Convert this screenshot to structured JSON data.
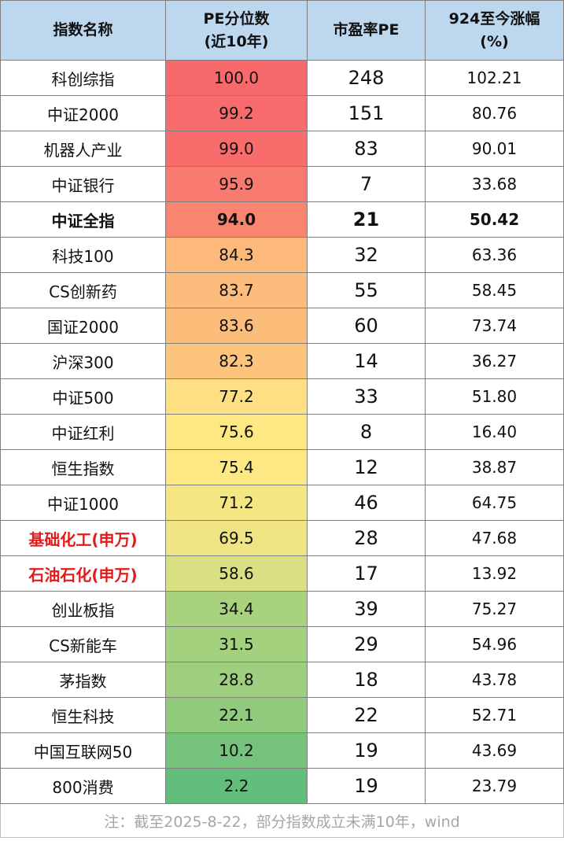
{
  "header": {
    "col1": "指数名称",
    "col2_line1": "PE分位数",
    "col2_line2": "(近10年)",
    "col3": "市盈率PE",
    "col4_line1": "924至今涨幅",
    "col4_line2": "(%)"
  },
  "rows": [
    {
      "name": "科创综指",
      "pct": "100.0",
      "pe": "248",
      "gain": "102.21",
      "color": "#f8696b",
      "style": "normal"
    },
    {
      "name": "中证2000",
      "pct": "99.2",
      "pe": "151",
      "gain": "80.76",
      "color": "#f86b6c",
      "style": "normal"
    },
    {
      "name": "机器人产业",
      "pct": "99.0",
      "pe": "83",
      "gain": "90.01",
      "color": "#f86c6c",
      "style": "normal"
    },
    {
      "name": "中证银行",
      "pct": "95.9",
      "pe": "7",
      "gain": "33.68",
      "color": "#f97b70",
      "style": "normal"
    },
    {
      "name": "中证全指",
      "pct": "94.0",
      "pe": "21",
      "gain": "50.42",
      "color": "#f98571",
      "style": "bold"
    },
    {
      "name": "科技100",
      "pct": "84.3",
      "pe": "32",
      "gain": "63.36",
      "color": "#fcb97a",
      "style": "normal"
    },
    {
      "name": "CS创新药",
      "pct": "83.7",
      "pe": "55",
      "gain": "58.45",
      "color": "#fcbc7b",
      "style": "normal"
    },
    {
      "name": "国证2000",
      "pct": "83.6",
      "pe": "60",
      "gain": "73.74",
      "color": "#fcbd7b",
      "style": "normal"
    },
    {
      "name": "沪深300",
      "pct": "82.3",
      "pe": "14",
      "gain": "36.27",
      "color": "#fcc47c",
      "style": "normal"
    },
    {
      "name": "中证500",
      "pct": "77.2",
      "pe": "33",
      "gain": "51.80",
      "color": "#fee082",
      "style": "normal"
    },
    {
      "name": "中证红利",
      "pct": "75.6",
      "pe": "8",
      "gain": "16.40",
      "color": "#fee883",
      "style": "normal"
    },
    {
      "name": "恒生指数",
      "pct": "75.4",
      "pe": "12",
      "gain": "38.87",
      "color": "#fee883",
      "style": "normal"
    },
    {
      "name": "中证1000",
      "pct": "71.2",
      "pe": "46",
      "gain": "64.75",
      "color": "#f5e684",
      "style": "normal"
    },
    {
      "name": "基础化工(申万)",
      "pct": "69.5",
      "pe": "28",
      "gain": "47.68",
      "color": "#efe483",
      "style": "red"
    },
    {
      "name": "石油石化(申万)",
      "pct": "58.6",
      "pe": "17",
      "gain": "13.92",
      "color": "#d9e082",
      "style": "red"
    },
    {
      "name": "创业板指",
      "pct": "34.4",
      "pe": "39",
      "gain": "75.27",
      "color": "#a9d27f",
      "style": "normal"
    },
    {
      "name": "CS新能车",
      "pct": "31.5",
      "pe": "29",
      "gain": "54.96",
      "color": "#a3d17e",
      "style": "normal"
    },
    {
      "name": "茅指数",
      "pct": "28.8",
      "pe": "18",
      "gain": "43.78",
      "color": "#9dcf7e",
      "style": "normal"
    },
    {
      "name": "恒生科技",
      "pct": "22.1",
      "pe": "22",
      "gain": "52.71",
      "color": "#90cb7d",
      "style": "normal"
    },
    {
      "name": "中国互联网50",
      "pct": "10.2",
      "pe": "19",
      "gain": "43.69",
      "color": "#75c37c",
      "style": "normal"
    },
    {
      "name": "800消费",
      "pct": "2.2",
      "pe": "19",
      "gain": "23.79",
      "color": "#63be7b",
      "style": "normal"
    }
  ],
  "note": "注：截至2025-8-22，部分指数成立未满10年，wind",
  "colors": {
    "header_bg": "#bdd7ee",
    "red_text": "#e31a1a",
    "note_text": "#a6a6a6"
  }
}
